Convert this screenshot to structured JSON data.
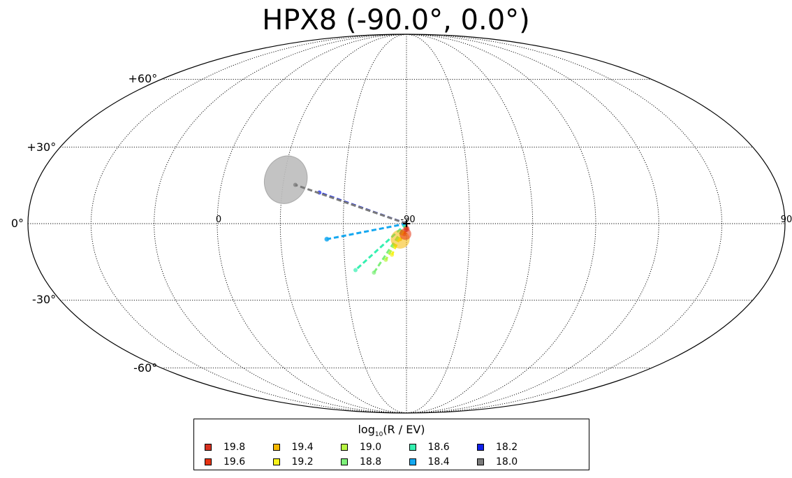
{
  "chart_data": {
    "type": "scatter",
    "title": "HPX8 (-90.0°, 0.0°)",
    "projection": "mollweide",
    "center": [
      -90.0,
      0.0
    ],
    "grid": true,
    "lat_ticks": [
      {
        "value": 60,
        "label": "+60°"
      },
      {
        "value": 30,
        "label": "+30°"
      },
      {
        "value": 0,
        "label": "0°"
      },
      {
        "value": -30,
        "label": "-30°"
      },
      {
        "value": -60,
        "label": "-60°"
      }
    ],
    "lon_ticks": [
      {
        "value": -90,
        "label": "-90"
      },
      {
        "value": 0,
        "label": "0"
      },
      {
        "value": 90,
        "label": "90"
      }
    ],
    "legend": {
      "title_prefix": "log",
      "title_sub": "10",
      "title_suffix": "(R / EV)",
      "placement": "bottom-center",
      "entries": [
        {
          "label": "19.8",
          "color": "#d7301f"
        },
        {
          "label": "19.6",
          "color": "#e63312"
        },
        {
          "label": "19.4",
          "color": "#f5b800"
        },
        {
          "label": "19.2",
          "color": "#f7f21a"
        },
        {
          "label": "19.0",
          "color": "#b7f542"
        },
        {
          "label": "18.8",
          "color": "#7df07a"
        },
        {
          "label": "18.6",
          "color": "#35f0b0"
        },
        {
          "label": "18.4",
          "color": "#15a8f0"
        },
        {
          "label": "18.2",
          "color": "#1020e8"
        },
        {
          "label": "18.0",
          "color": "#7a7a7a"
        }
      ]
    },
    "source": {
      "lon": -90.0,
      "lat": 0.0
    },
    "uncertainty_region": {
      "lon": -31.0,
      "lat": 17.0,
      "width_deg": 20,
      "height_deg": 23,
      "rotation": 20,
      "color": "#bdbdbd"
    },
    "tracks": [
      {
        "label": "18.0",
        "end_lon": -36.0,
        "end_lat": 15.0,
        "color": "#7a7a7a"
      },
      {
        "label": "18.2",
        "end_lon": -48.0,
        "end_lat": 12.0,
        "color": "#1020e8"
      },
      {
        "label": "18.4",
        "end_lon": -52.0,
        "end_lat": -6.0,
        "color": "#15a8f0"
      },
      {
        "label": "18.6",
        "end_lon": -65.0,
        "end_lat": -18.0,
        "color": "#35f0b0"
      },
      {
        "label": "18.8",
        "end_lon": -74.0,
        "end_lat": -19.0,
        "color": "#7df07a"
      },
      {
        "label": "19.0",
        "end_lon": -80.0,
        "end_lat": -14.0,
        "color": "#b7f542"
      },
      {
        "label": "19.2",
        "end_lon": -83.0,
        "end_lat": -12.0,
        "color": "#f7f21a"
      },
      {
        "label": "19.4",
        "end_lon": -87.0,
        "end_lat": -6.0,
        "color": "#f5b800"
      },
      {
        "label": "19.6",
        "end_lon": -89.0,
        "end_lat": -4.0,
        "color": "#e63312"
      },
      {
        "label": "19.8",
        "end_lon": -90.0,
        "end_lat": -2.0,
        "color": "#d7301f"
      }
    ],
    "end_blobs": [
      {
        "label": "19.4",
        "lon": -87.0,
        "lat": -6.0,
        "color": "#f5b800",
        "radius_deg": 4.5
      },
      {
        "label": "19.6",
        "lon": -89.5,
        "lat": -4.0,
        "color": "#e63312",
        "radius_deg": 2.8
      },
      {
        "label": "19.8",
        "lon": -90.0,
        "lat": -2.0,
        "color": "#d7301f",
        "radius_deg": 1.5
      },
      {
        "label": "18.4",
        "lon": -52.0,
        "lat": -6.0,
        "color": "#15a8f0",
        "radius_deg": 1.2
      }
    ]
  }
}
